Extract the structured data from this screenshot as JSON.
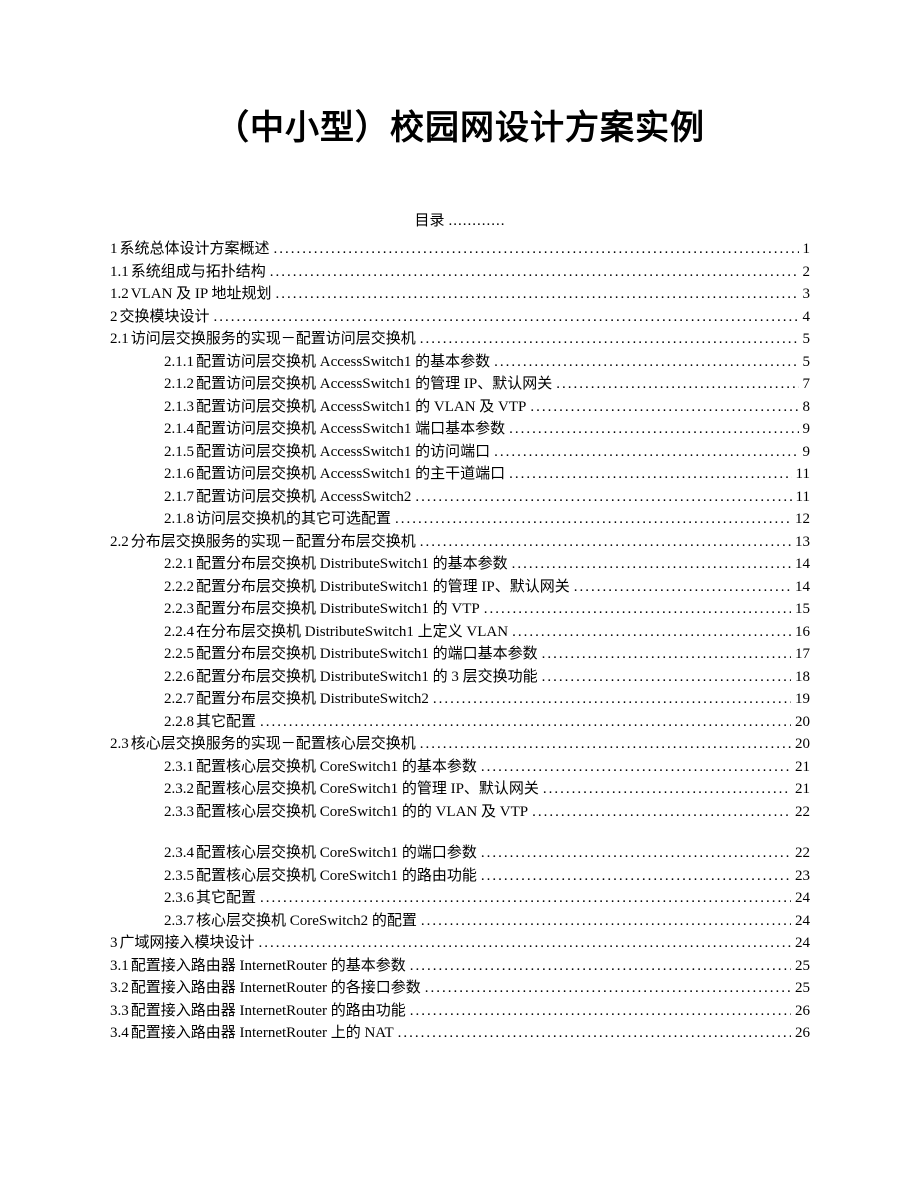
{
  "title": "（中小型）校园网设计方案实例",
  "toc_heading": "目录",
  "toc": [
    {
      "num": "1",
      "text": " 系统总体设计方案概述",
      "page": "1",
      "indent": 0
    },
    {
      "num": "1.1",
      "text": " 系统组成与拓扑结构",
      "page": "2",
      "indent": 1
    },
    {
      "num": "1.2",
      "text": " VLAN 及 IP 地址规划",
      "page": "3",
      "indent": 1
    },
    {
      "num": "2",
      "text": " 交换模块设计",
      "page": "4",
      "indent": 0
    },
    {
      "num": "2.1",
      "text": " 访问层交换服务的实现－配置访问层交换机",
      "page": "5",
      "indent": 1
    },
    {
      "num": "2.1.1",
      "text": "配置访问层交换机 AccessSwitch1 的基本参数",
      "page": "5",
      "indent": 2
    },
    {
      "num": "2.1.2",
      "text": "配置访问层交换机 AccessSwitch1 的管理 IP、默认网关",
      "page": "7",
      "indent": 2
    },
    {
      "num": "2.1.3",
      "text": "配置访问层交换机 AccessSwitch1 的 VLAN 及 VTP",
      "page": "8",
      "indent": 2
    },
    {
      "num": "2.1.4",
      "text": "配置访问层交换机 AccessSwitch1 端口基本参数",
      "page": "9",
      "indent": 2
    },
    {
      "num": "2.1.5",
      "text": "配置访问层交换机 AccessSwitch1 的访问端口",
      "page": "9",
      "indent": 2
    },
    {
      "num": "2.1.6",
      "text": "配置访问层交换机 AccessSwitch1 的主干道端口",
      "page": "11",
      "indent": 2
    },
    {
      "num": "2.1.7",
      "text": "配置访问层交换机 AccessSwitch2",
      "page": "11",
      "indent": 2
    },
    {
      "num": "2.1.8",
      "text": "访问层交换机的其它可选配置",
      "page": "12",
      "indent": 2
    },
    {
      "num": "2.2",
      "text": " 分布层交换服务的实现－配置分布层交换机",
      "page": "13",
      "indent": 1
    },
    {
      "num": "2.2.1",
      "text": "配置分布层交换机 DistributeSwitch1 的基本参数",
      "page": "14",
      "indent": 2
    },
    {
      "num": "2.2.2",
      "text": "配置分布层交换机 DistributeSwitch1 的管理 IP、默认网关",
      "page": "14",
      "indent": 2
    },
    {
      "num": "2.2.3",
      "text": "配置分布层交换机 DistributeSwitch1 的 VTP",
      "page": "15",
      "indent": 2
    },
    {
      "num": "2.2.4",
      "text": "在分布层交换机 DistributeSwitch1 上定义 VLAN",
      "page": "16",
      "indent": 2
    },
    {
      "num": "2.2.5",
      "text": "配置分布层交换机 DistributeSwitch1 的端口基本参数",
      "page": "17",
      "indent": 2
    },
    {
      "num": "2.2.6",
      "text": "配置分布层交换机 DistributeSwitch1 的 3 层交换功能",
      "page": "18",
      "indent": 2
    },
    {
      "num": "2.2.7",
      "text": "配置分布层交换机 DistributeSwitch2",
      "page": "19",
      "indent": 2
    },
    {
      "num": "2.2.8",
      "text": "其它配置",
      "page": "20",
      "indent": 2
    },
    {
      "num": "2.3",
      "text": " 核心层交换服务的实现－配置核心层交换机",
      "page": "20",
      "indent": 1
    },
    {
      "num": "2.3.1",
      "text": "配置核心层交换机 CoreSwitch1 的基本参数",
      "page": "21",
      "indent": 2
    },
    {
      "num": "2.3.2",
      "text": "配置核心层交换机 CoreSwitch1 的管理 IP、默认网关",
      "page": "21",
      "indent": 2
    },
    {
      "num": "2.3.3",
      "text": "配置核心层交换机 CoreSwitch1 的的 VLAN 及 VTP",
      "page": "22",
      "indent": 2
    },
    {
      "spacer": true
    },
    {
      "num": "2.3.4",
      "text": "配置核心层交换机 CoreSwitch1 的端口参数",
      "page": "22",
      "indent": 2
    },
    {
      "num": "2.3.5",
      "text": "配置核心层交换机 CoreSwitch1 的路由功能",
      "page": "23",
      "indent": 2
    },
    {
      "num": "2.3.6",
      "text": "其它配置",
      "page": "24",
      "indent": 2
    },
    {
      "num": "2.3.7",
      "text": "核心层交换机 CoreSwitch2 的配置",
      "page": "24",
      "indent": 2
    },
    {
      "num": "3",
      "text": " 广域网接入模块设计",
      "page": "24",
      "indent": 0
    },
    {
      "num": "3.1",
      "text": " 配置接入路由器 InternetRouter 的基本参数",
      "page": "25",
      "indent": 1
    },
    {
      "num": "3.2",
      "text": " 配置接入路由器 InternetRouter 的各接口参数",
      "page": "25",
      "indent": 1
    },
    {
      "num": "3.3",
      "text": " 配置接入路由器 InternetRouter 的路由功能",
      "page": "26",
      "indent": 1
    },
    {
      "num": "3.4",
      "text": " 配置接入路由器 InternetRouter 上的 NAT",
      "page": "26",
      "indent": 1
    }
  ]
}
